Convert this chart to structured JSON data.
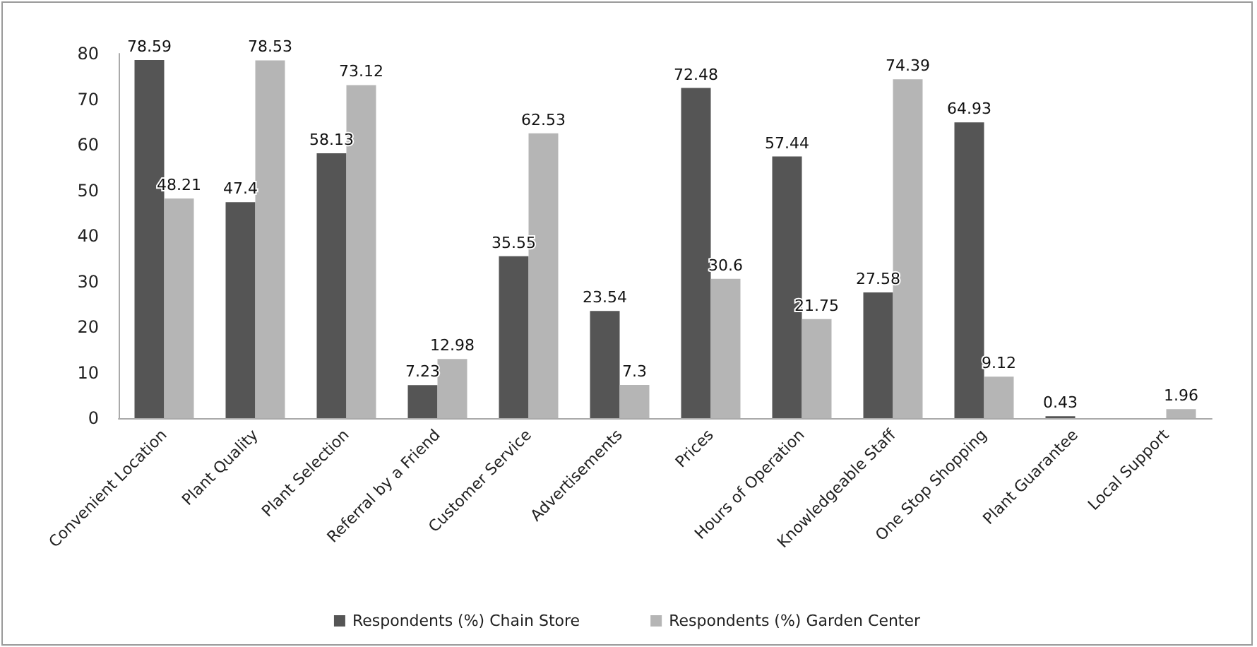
{
  "chart_data": {
    "type": "bar",
    "categories": [
      "Convenient Location",
      "Plant Quality",
      "Plant Selection",
      "Referral by a Friend",
      "Customer Service",
      "Advertisements",
      "Prices",
      "Hours of Operation",
      "Knowledgeable Staff",
      "One Stop Shopping",
      "Plant Guarantee",
      "Local Support"
    ],
    "series": [
      {
        "name": "Respondents (%) Chain Store",
        "color": "#555555",
        "values": [
          78.59,
          47.4,
          58.13,
          7.23,
          35.55,
          23.54,
          72.48,
          57.44,
          27.58,
          64.93,
          0.43,
          null
        ]
      },
      {
        "name": "Respondents (%) Garden Center",
        "color": "#b5b5b5",
        "values": [
          48.21,
          78.53,
          73.12,
          12.98,
          62.53,
          7.3,
          30.6,
          21.75,
          74.39,
          9.12,
          null,
          1.96
        ]
      }
    ],
    "ylim": [
      0,
      80
    ],
    "yticks": [
      0,
      10,
      20,
      30,
      40,
      50,
      60,
      70,
      80
    ],
    "data_labels": true,
    "grid": false,
    "legend": "bottom"
  }
}
